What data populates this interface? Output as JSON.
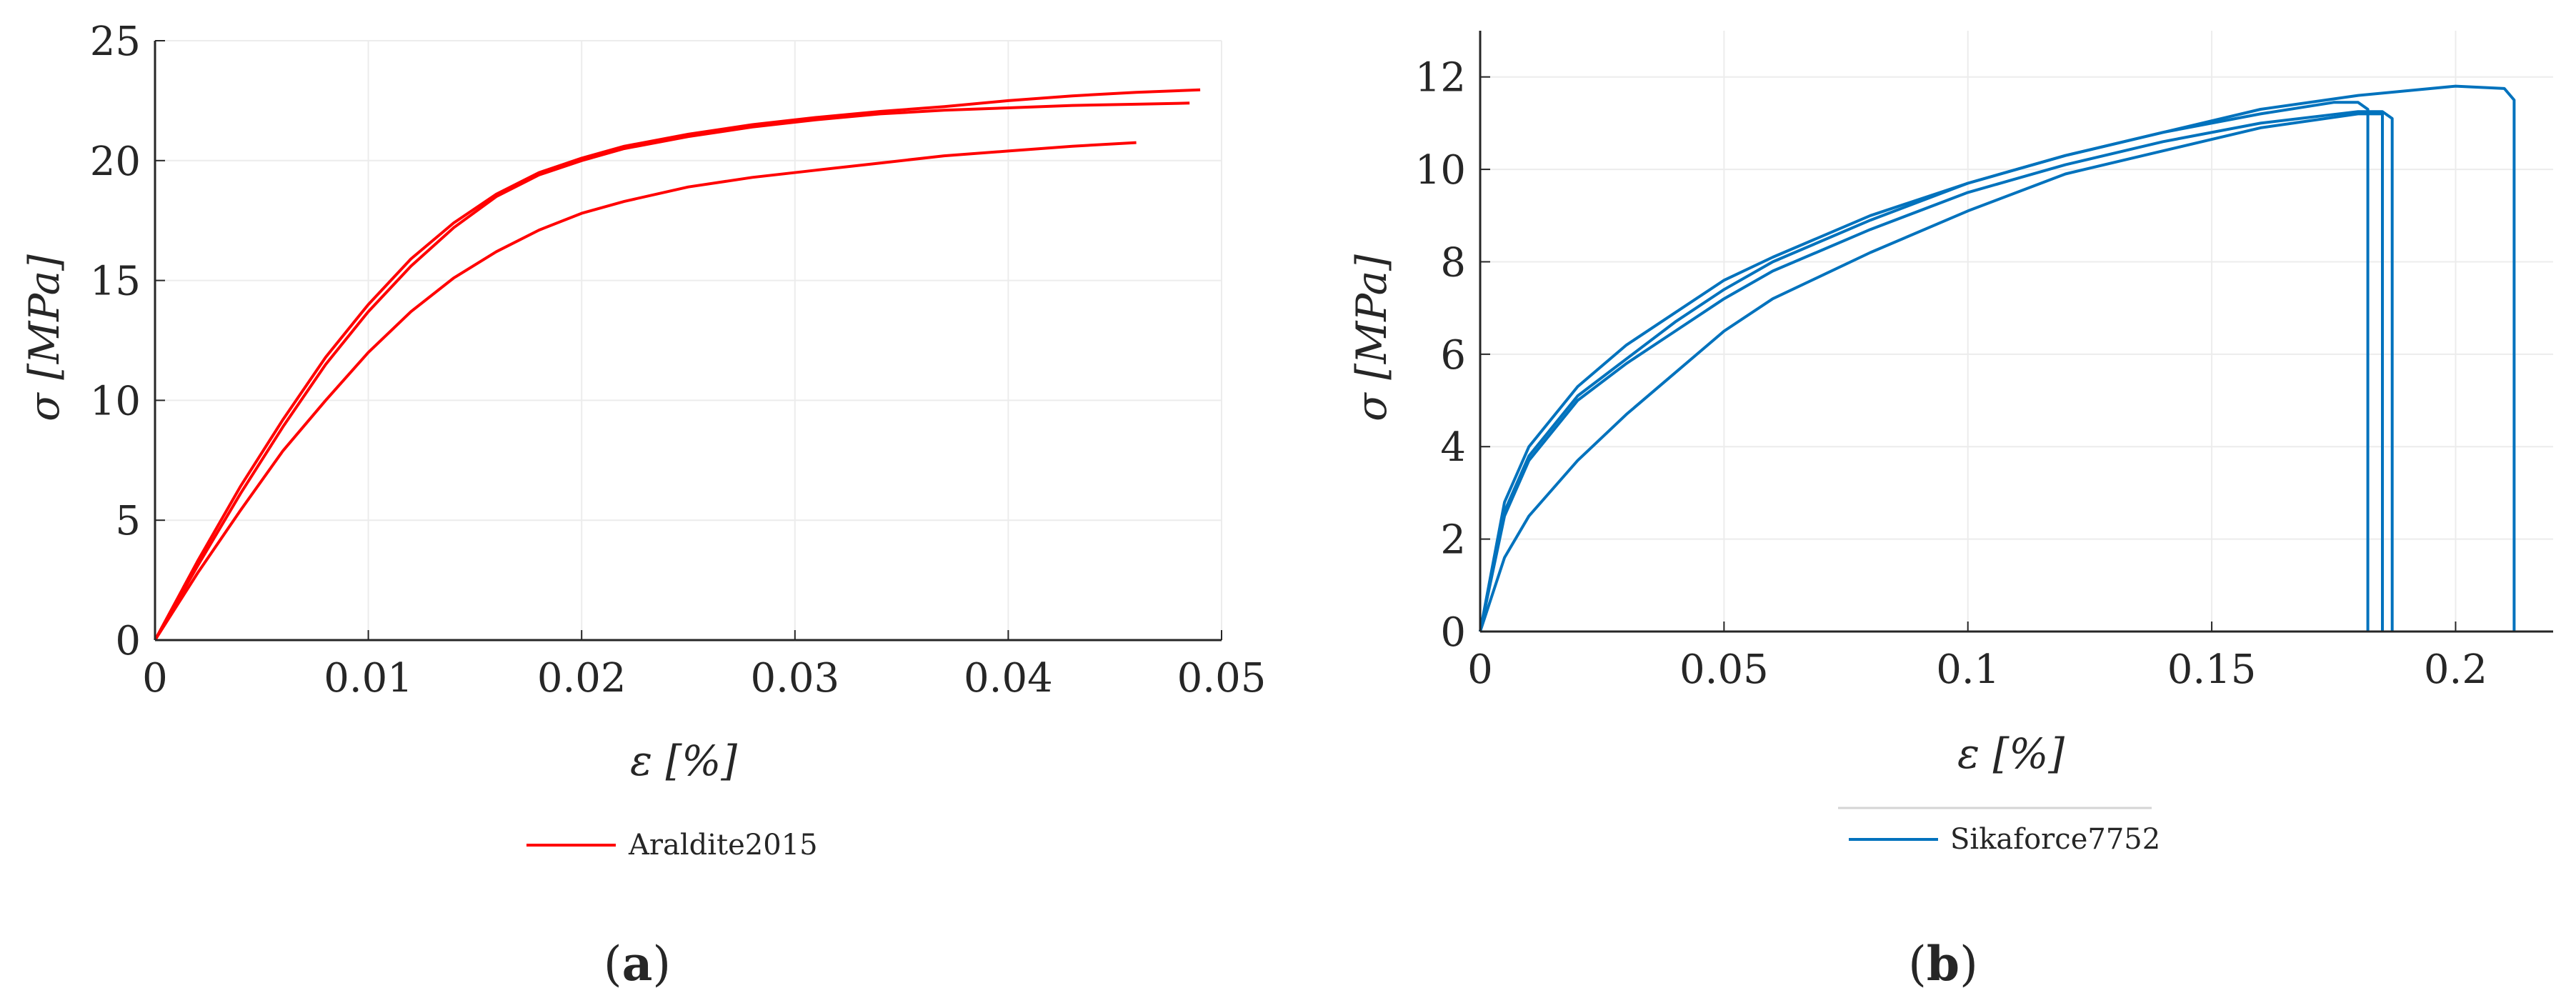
{
  "chart_data": [
    {
      "type": "line",
      "panel": "(a)",
      "caption": {
        "open": "(",
        "letter": "a",
        "close": ")"
      },
      "xlabel": "ε [%]",
      "ylabel": "σ [MPa]",
      "xlim": [
        0,
        0.05
      ],
      "ylim": [
        0,
        25
      ],
      "xticks": [
        0,
        0.01,
        0.02,
        0.03,
        0.04,
        0.05
      ],
      "xtick_labels": [
        "0",
        "0.01",
        "0.02",
        "0.03",
        "0.04",
        "0.05"
      ],
      "yticks": [
        0,
        5,
        10,
        15,
        20,
        25
      ],
      "ytick_labels": [
        "0",
        "5",
        "10",
        "15",
        "20",
        "25"
      ],
      "grid": true,
      "legend_position": "below",
      "legend": [
        "Araldite2015"
      ],
      "color": "#ff0000",
      "series": [
        {
          "name": "Araldite2015",
          "x": [
            0,
            0.002,
            0.004,
            0.006,
            0.008,
            0.01,
            0.012,
            0.014,
            0.016,
            0.018,
            0.02,
            0.022,
            0.025,
            0.028,
            0.031,
            0.034,
            0.037,
            0.04,
            0.043,
            0.046,
            0.049
          ],
          "y": [
            0,
            3.3,
            6.4,
            9.2,
            11.8,
            14.0,
            15.9,
            17.4,
            18.6,
            19.5,
            20.1,
            20.6,
            21.1,
            21.5,
            21.8,
            22.05,
            22.25,
            22.5,
            22.7,
            22.85,
            22.95
          ]
        },
        {
          "name": "",
          "x": [
            0,
            0.002,
            0.004,
            0.006,
            0.008,
            0.01,
            0.012,
            0.014,
            0.016,
            0.018,
            0.02,
            0.022,
            0.025,
            0.028,
            0.031,
            0.034,
            0.037,
            0.04,
            0.043,
            0.046,
            0.0485
          ],
          "y": [
            0,
            3.1,
            6.1,
            8.9,
            11.5,
            13.7,
            15.6,
            17.2,
            18.5,
            19.4,
            20.0,
            20.5,
            21.0,
            21.4,
            21.7,
            21.95,
            22.1,
            22.2,
            22.3,
            22.35,
            22.4
          ]
        },
        {
          "name": "",
          "x": [
            0,
            0.002,
            0.004,
            0.006,
            0.008,
            0.01,
            0.012,
            0.014,
            0.016,
            0.018,
            0.02,
            0.022,
            0.025,
            0.028,
            0.031,
            0.034,
            0.037,
            0.04,
            0.043,
            0.046
          ],
          "y": [
            0,
            2.8,
            5.4,
            7.9,
            10.0,
            12.0,
            13.7,
            15.1,
            16.2,
            17.1,
            17.8,
            18.3,
            18.9,
            19.3,
            19.6,
            19.9,
            20.2,
            20.4,
            20.6,
            20.75
          ]
        }
      ]
    },
    {
      "type": "line",
      "panel": "(b)",
      "caption": {
        "open": "(",
        "letter": "b",
        "close": ")"
      },
      "xlabel": "ε [%]",
      "ylabel": "σ [MPa]",
      "xlim": [
        0,
        0.22
      ],
      "ylim": [
        0,
        13
      ],
      "xticks": [
        0,
        0.05,
        0.1,
        0.15,
        0.2
      ],
      "xtick_labels": [
        "0",
        "0.05",
        "0.1",
        "0.15",
        "0.2"
      ],
      "yticks": [
        0,
        2,
        4,
        6,
        8,
        10,
        12
      ],
      "ytick_labels": [
        "0",
        "2",
        "4",
        "6",
        "8",
        "10",
        "12"
      ],
      "grid": true,
      "legend_position": "below",
      "legend": [
        "Sikaforce7752"
      ],
      "color": "#0072bd",
      "series": [
        {
          "name": "Sikaforce7752",
          "x": [
            0,
            0.005,
            0.01,
            0.02,
            0.03,
            0.04,
            0.05,
            0.06,
            0.08,
            0.1,
            0.12,
            0.14,
            0.16,
            0.18,
            0.2,
            0.21,
            0.212,
            0.212
          ],
          "y": [
            0,
            2.8,
            4.0,
            5.3,
            6.2,
            6.9,
            7.6,
            8.1,
            9.0,
            9.7,
            10.3,
            10.8,
            11.3,
            11.6,
            11.8,
            11.75,
            11.5,
            0
          ]
        },
        {
          "name": "",
          "x": [
            0,
            0.005,
            0.01,
            0.02,
            0.03,
            0.04,
            0.05,
            0.06,
            0.08,
            0.1,
            0.12,
            0.14,
            0.16,
            0.175,
            0.18,
            0.182,
            0.182
          ],
          "y": [
            0,
            2.6,
            3.8,
            5.1,
            5.9,
            6.7,
            7.4,
            8.0,
            8.9,
            9.7,
            10.3,
            10.8,
            11.2,
            11.45,
            11.45,
            11.3,
            0
          ]
        },
        {
          "name": "",
          "x": [
            0,
            0.005,
            0.01,
            0.02,
            0.03,
            0.04,
            0.05,
            0.06,
            0.08,
            0.1,
            0.12,
            0.14,
            0.16,
            0.18,
            0.185,
            0.187,
            0.187
          ],
          "y": [
            0,
            2.5,
            3.7,
            5.0,
            5.8,
            6.5,
            7.2,
            7.8,
            8.7,
            9.5,
            10.1,
            10.6,
            11.0,
            11.25,
            11.25,
            11.1,
            0
          ]
        },
        {
          "name": "",
          "x": [
            0,
            0.005,
            0.01,
            0.02,
            0.03,
            0.04,
            0.05,
            0.06,
            0.08,
            0.1,
            0.12,
            0.14,
            0.16,
            0.18,
            0.185,
            0.185
          ],
          "y": [
            0,
            1.6,
            2.5,
            3.7,
            4.7,
            5.6,
            6.5,
            7.2,
            8.2,
            9.1,
            9.9,
            10.4,
            10.9,
            11.2,
            11.2,
            0
          ]
        }
      ]
    }
  ]
}
